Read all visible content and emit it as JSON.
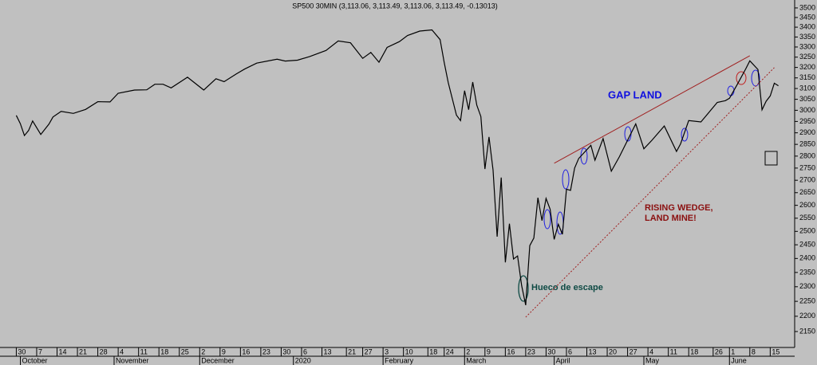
{
  "chart_data": {
    "type": "line",
    "title": "SP500 30MIN (3,113.06, 3,113.49, 3,113.06, 3,113.49, -0.13013)",
    "color": "#000000",
    "log_scale": true,
    "ylim": [
      2099,
      3542
    ],
    "yticks": [
      2150,
      2200,
      2250,
      2300,
      2350,
      2400,
      2450,
      2500,
      2550,
      2600,
      2650,
      2700,
      2750,
      2800,
      2850,
      2900,
      2950,
      3000,
      3050,
      3100,
      3150,
      3200,
      3250,
      3300,
      3350,
      3400,
      3450,
      3500
    ],
    "xlim": [
      "2019-09-24",
      "2020-06-23"
    ],
    "xticks": [
      {
        "value": "2019-09-30",
        "label": "30"
      },
      {
        "value": "2019-10-07",
        "label": "7"
      },
      {
        "value": "2019-10-14",
        "label": "14"
      },
      {
        "value": "2019-10-21",
        "label": "21"
      },
      {
        "value": "2019-10-28",
        "label": "28"
      },
      {
        "value": "2019-11-04",
        "label": "4"
      },
      {
        "value": "2019-11-11",
        "label": "11"
      },
      {
        "value": "2019-11-18",
        "label": "18"
      },
      {
        "value": "2019-11-25",
        "label": "25"
      },
      {
        "value": "2019-12-02",
        "label": "2"
      },
      {
        "value": "2019-12-09",
        "label": "9"
      },
      {
        "value": "2019-12-16",
        "label": "16"
      },
      {
        "value": "2019-12-23",
        "label": "23"
      },
      {
        "value": "2019-12-30",
        "label": "30"
      },
      {
        "value": "2020-01-06",
        "label": "6"
      },
      {
        "value": "2020-01-13",
        "label": "13"
      },
      {
        "value": "2020-01-21",
        "label": "21"
      },
      {
        "value": "2020-01-27",
        "label": "27"
      },
      {
        "value": "2020-02-03",
        "label": "3"
      },
      {
        "value": "2020-02-10",
        "label": "10"
      },
      {
        "value": "2020-02-18",
        "label": "18"
      },
      {
        "value": "2020-02-24",
        "label": "24"
      },
      {
        "value": "2020-03-02",
        "label": "2"
      },
      {
        "value": "2020-03-09",
        "label": "9"
      },
      {
        "value": "2020-03-16",
        "label": "16"
      },
      {
        "value": "2020-03-23",
        "label": "23"
      },
      {
        "value": "2020-03-30",
        "label": "30"
      },
      {
        "value": "2020-04-06",
        "label": "6"
      },
      {
        "value": "2020-04-13",
        "label": "13"
      },
      {
        "value": "2020-04-20",
        "label": "20"
      },
      {
        "value": "2020-04-27",
        "label": "27"
      },
      {
        "value": "2020-05-04",
        "label": "4"
      },
      {
        "value": "2020-05-11",
        "label": "11"
      },
      {
        "value": "2020-05-18",
        "label": "18"
      },
      {
        "value": "2020-05-26",
        "label": "26"
      },
      {
        "value": "2020-06-01",
        "label": "1"
      },
      {
        "value": "2020-06-08",
        "label": "8"
      },
      {
        "value": "2020-06-15",
        "label": "15"
      }
    ],
    "month_ticks": [
      {
        "value": "2019-10-01",
        "label": "October"
      },
      {
        "value": "2019-11-01",
        "label": "November"
      },
      {
        "value": "2019-12-02",
        "label": "December"
      },
      {
        "value": "2020-01-02",
        "label": "2020"
      },
      {
        "value": "2020-02-03",
        "label": "February"
      },
      {
        "value": "2020-03-02",
        "label": "March"
      },
      {
        "value": "2020-04-01",
        "label": "April"
      },
      {
        "value": "2020-05-01",
        "label": "May"
      },
      {
        "value": "2020-06-01",
        "label": "June"
      }
    ],
    "x": [
      "2019-09-30",
      "2019-10-01",
      "2019-10-02",
      "2019-10-03",
      "2019-10-04",
      "2019-10-08",
      "2019-10-10",
      "2019-10-11",
      "2019-10-15",
      "2019-10-18",
      "2019-10-23",
      "2019-10-28",
      "2019-10-31",
      "2019-11-04",
      "2019-11-08",
      "2019-11-13",
      "2019-11-15",
      "2019-11-19",
      "2019-11-21",
      "2019-11-27",
      "2019-12-03",
      "2019-12-06",
      "2019-12-10",
      "2019-12-13",
      "2019-12-17",
      "2019-12-20",
      "2019-12-27",
      "2019-12-31",
      "2020-01-03",
      "2020-01-08",
      "2020-01-14",
      "2020-01-17",
      "2020-01-22",
      "2020-01-27",
      "2020-01-29",
      "2020-01-31",
      "2020-02-04",
      "2020-02-07",
      "2020-02-11",
      "2020-02-14",
      "2020-02-19",
      "2020-02-21",
      "2020-02-24",
      "2020-02-25",
      "2020-02-27",
      "2020-02-28",
      "2020-03-02",
      "2020-03-03",
      "2020-03-04",
      "2020-03-05",
      "2020-03-06",
      "2020-03-09",
      "2020-03-10",
      "2020-03-11",
      "2020-03-12",
      "2020-03-13",
      "2020-03-16",
      "2020-03-17",
      "2020-03-18",
      "2020-03-19",
      "2020-03-20",
      "2020-03-23",
      "2020-03-24",
      "2020-03-25",
      "2020-03-26",
      "2020-03-27",
      "2020-03-30",
      "2020-03-31",
      "2020-04-01",
      "2020-04-02",
      "2020-04-03",
      "2020-04-06",
      "2020-04-07",
      "2020-04-08",
      "2020-04-09",
      "2020-04-14",
      "2020-04-15",
      "2020-04-17",
      "2020-04-21",
      "2020-04-23",
      "2020-04-29",
      "2020-05-01",
      "2020-05-05",
      "2020-05-08",
      "2020-05-13",
      "2020-05-14",
      "2020-05-18",
      "2020-05-21",
      "2020-05-27",
      "2020-05-29",
      "2020-06-01",
      "2020-06-03",
      "2020-06-05",
      "2020-06-08",
      "2020-06-10",
      "2020-06-11",
      "2020-06-12",
      "2020-06-15",
      "2020-06-16",
      "2020-06-17"
    ],
    "values": [
      2977,
      2940,
      2888,
      2910,
      2952,
      2893,
      2938,
      2970,
      2995,
      2986,
      3004,
      3039,
      3038,
      3078,
      3093,
      3094,
      3120,
      3120,
      3103,
      3153,
      3093,
      3146,
      3132,
      3169,
      3192,
      3221,
      3240,
      3231,
      3235,
      3253,
      3283,
      3330,
      3321,
      3244,
      3273,
      3225,
      3298,
      3327,
      3358,
      3380,
      3386,
      3337,
      3225,
      3128,
      2978,
      2954,
      3090,
      3003,
      3130,
      3023,
      2972,
      2746,
      2882,
      2741,
      2480,
      2711,
      2386,
      2529,
      2398,
      2409,
      2304,
      2237,
      2447,
      2475,
      2630,
      2541,
      2627,
      2585,
      2470,
      2527,
      2489,
      2664,
      2659,
      2750,
      2790,
      2846,
      2783,
      2875,
      2737,
      2798,
      2939,
      2831,
      2868,
      2930,
      2820,
      2852,
      2954,
      2948,
      3036,
      3044,
      3055,
      3122,
      3193,
      3232,
      3190,
      3002,
      3041,
      3066,
      3125,
      3113
    ],
    "trendlines": [
      {
        "x": [
          "2020-04-01",
          "2020-06-08"
        ],
        "values": [
          2770,
          3257
        ],
        "color": "#a02020",
        "dashed": false
      },
      {
        "x": [
          "2020-03-23",
          "2020-06-16"
        ],
        "values": [
          2197,
          3199
        ],
        "color": "#a02020",
        "dashed": true
      }
    ],
    "annotations": [
      "GAP LAND",
      "RISING WEDGE,",
      "LAND MINE!",
      "Hueco de escape"
    ]
  }
}
